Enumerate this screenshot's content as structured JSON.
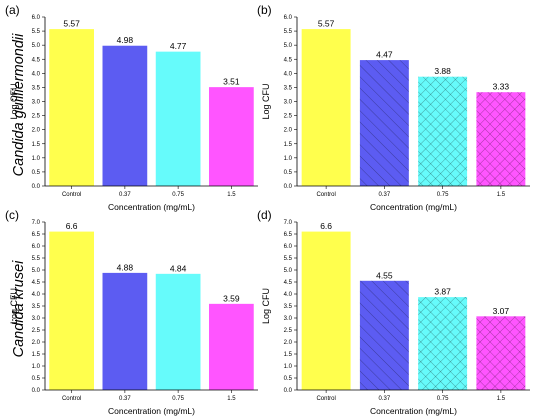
{
  "row_labels": [
    "Candida guilliermondii",
    "Candida krusei"
  ],
  "chart_data": [
    {
      "type": "bar",
      "panel_label": "(a)",
      "categories": [
        "Control",
        "0.37",
        "0.75",
        "1.5"
      ],
      "values": [
        5.57,
        4.98,
        4.77,
        3.51
      ],
      "value_labels": [
        "5.57",
        "4.98",
        "4.77",
        "3.51"
      ],
      "ylabel": "Log CFU",
      "xlabel": "Concentration (mg/mL)",
      "ylim": [
        0,
        6.0
      ],
      "yticks": [
        "0.0",
        "0.5",
        "1.0",
        "1.5",
        "2.0",
        "2.5",
        "3.0",
        "3.5",
        "4.0",
        "4.5",
        "5.0",
        "5.5",
        "6.0"
      ],
      "colors": [
        "#ffff4d",
        "#5c5cf2",
        "#66fbfb",
        "#ff55ff"
      ],
      "hatched": [
        false,
        false,
        false,
        false
      ]
    },
    {
      "type": "bar",
      "panel_label": "(b)",
      "categories": [
        "Control",
        "0.37",
        "0.75",
        "1.5"
      ],
      "values": [
        5.57,
        4.47,
        3.88,
        3.33
      ],
      "value_labels": [
        "5.57",
        "4.47",
        "3.88",
        "3.33"
      ],
      "ylabel": "Log CFU",
      "xlabel": "Concentration (mg/mL)",
      "ylim": [
        0,
        6.0
      ],
      "yticks": [
        "0.0",
        "0.5",
        "1.0",
        "1.5",
        "2.0",
        "2.5",
        "3.0",
        "3.5",
        "4.0",
        "4.5",
        "5.0",
        "5.5",
        "6.0"
      ],
      "colors": [
        "#ffff4d",
        "#5c5cf2",
        "#66fbfb",
        "#ff55ff"
      ],
      "hatched": [
        false,
        true,
        true,
        true
      ]
    },
    {
      "type": "bar",
      "panel_label": "(c)",
      "categories": [
        "Control",
        "0.37",
        "0.75",
        "1.5"
      ],
      "values": [
        6.6,
        4.88,
        4.84,
        3.59
      ],
      "value_labels": [
        "6.6",
        "4.88",
        "4.84",
        "3.59"
      ],
      "ylabel": "Log CFU",
      "xlabel": "Concentration (mg/mL)",
      "ylim": [
        0,
        7.0
      ],
      "yticks": [
        "0.0",
        "0.5",
        "1.0",
        "1.5",
        "2.0",
        "2.5",
        "3.0",
        "3.5",
        "4.0",
        "4.5",
        "5.0",
        "5.5",
        "6.0",
        "6.5",
        "7.0"
      ],
      "colors": [
        "#ffff4d",
        "#5c5cf2",
        "#66fbfb",
        "#ff55ff"
      ],
      "hatched": [
        false,
        false,
        false,
        false
      ]
    },
    {
      "type": "bar",
      "panel_label": "(d)",
      "categories": [
        "Control",
        "0.37",
        "0.75",
        "1.5"
      ],
      "values": [
        6.6,
        4.55,
        3.87,
        3.07
      ],
      "value_labels": [
        "6.6",
        "4.55",
        "3.87",
        "3.07"
      ],
      "ylabel": "Log CFU",
      "xlabel": "Concentration (mg/mL)",
      "ylim": [
        0,
        7.0
      ],
      "yticks": [
        "0.0",
        "0.5",
        "1.0",
        "1.5",
        "2.0",
        "2.5",
        "3.0",
        "3.5",
        "4.0",
        "4.5",
        "5.0",
        "5.5",
        "6.0",
        "6.5",
        "7.0"
      ],
      "colors": [
        "#ffff4d",
        "#5c5cf2",
        "#66fbfb",
        "#ff55ff"
      ],
      "hatched": [
        false,
        true,
        true,
        true
      ]
    }
  ]
}
